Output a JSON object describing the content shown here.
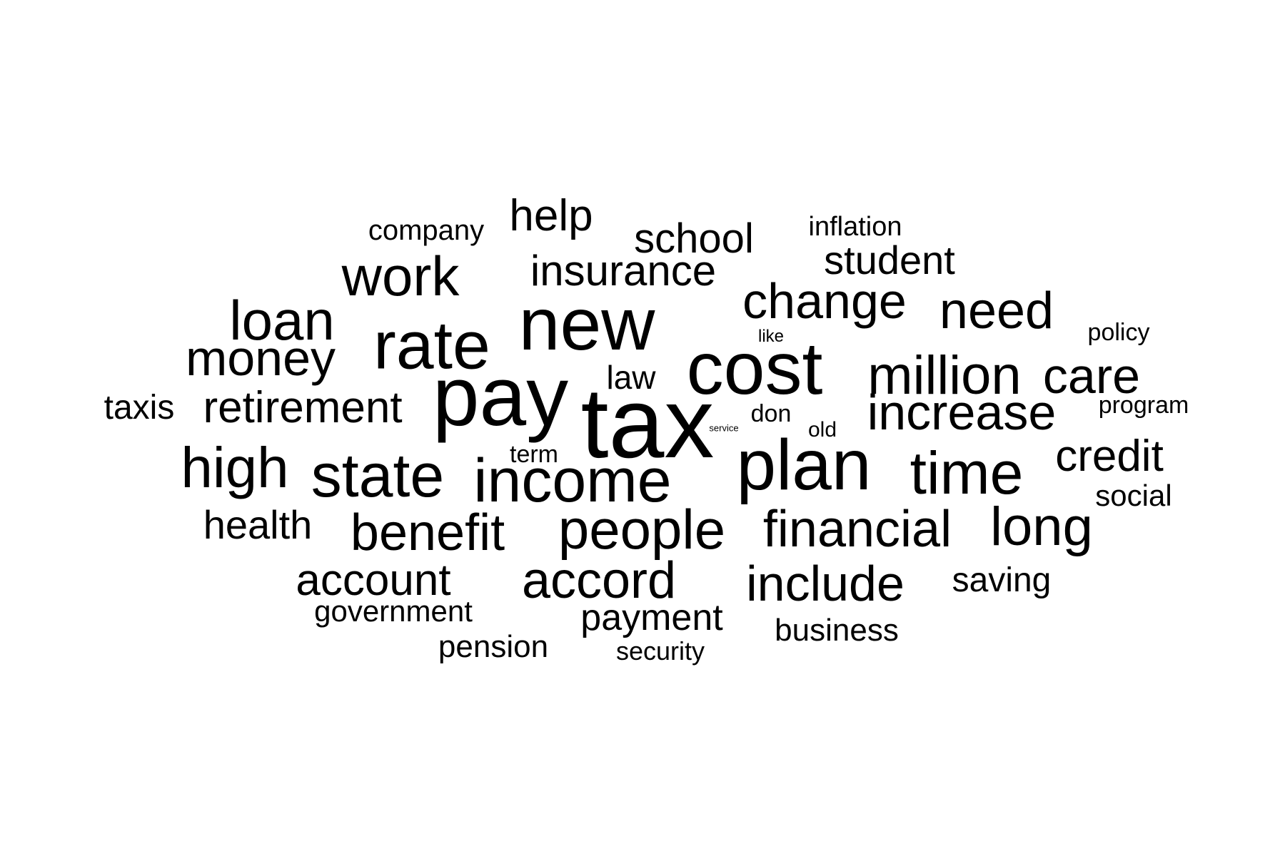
{
  "words": [
    "tax",
    "pay",
    "new",
    "cost",
    "plan",
    "rate",
    "income",
    "state",
    "people",
    "time",
    "high",
    "million",
    "care",
    "increase",
    "loan",
    "work",
    "change",
    "need",
    "money",
    "financial",
    "long",
    "accord",
    "include",
    "benefit",
    "insurance",
    "retirement",
    "credit",
    "account",
    "help",
    "school",
    "student",
    "health",
    "payment",
    "saving",
    "taxis",
    "government",
    "business",
    "pension",
    "inflation",
    "company",
    "social",
    "law",
    "security",
    "program",
    "policy",
    "term",
    "don",
    "old",
    "like",
    "service"
  ],
  "text_color": "#000000",
  "background_color": "#ffffff"
}
